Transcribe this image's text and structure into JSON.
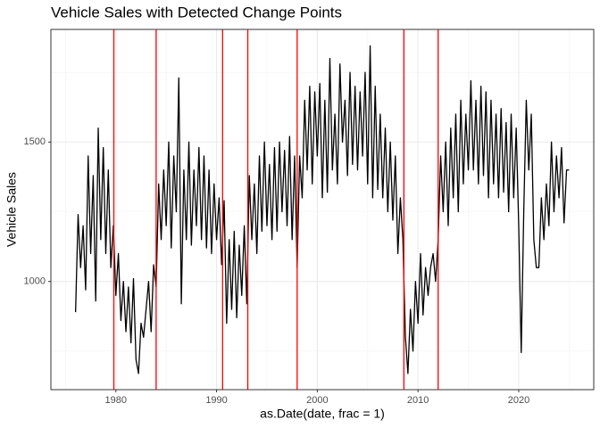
{
  "chart_data": {
    "type": "line",
    "title": "Vehicle Sales with Detected Change Points",
    "x_label": "as.Date(date, frac = 1)",
    "y_label": "Vehicle Sales",
    "color": "#000000",
    "change_points": [
      1979.8,
      1984.0,
      1990.6,
      1993.1,
      1998.0,
      2008.6,
      2012.0
    ],
    "change_color": "#ff0000",
    "xlim": [
      1973.55,
      2027.45
    ],
    "ylim": [
      612,
      1904
    ],
    "xticks": [
      1980,
      1990,
      2000,
      2010,
      2020
    ],
    "yticks": [
      1000,
      1500
    ],
    "x_minor_grid": [
      1975,
      1985,
      1995,
      2005,
      2015,
      2025
    ],
    "y_minor_grid": [
      750,
      1250,
      1750
    ],
    "grid": true,
    "x": [
      1976,
      1976.25,
      1976.5,
      1976.75,
      1977,
      1977.25,
      1977.5,
      1977.75,
      1978,
      1978.25,
      1978.5,
      1978.75,
      1979,
      1979.25,
      1979.5,
      1979.75,
      1980,
      1980.25,
      1980.5,
      1980.75,
      1981,
      1981.25,
      1981.5,
      1981.75,
      1982,
      1982.25,
      1982.5,
      1982.75,
      1983,
      1983.25,
      1983.5,
      1983.75,
      1984,
      1984.25,
      1984.5,
      1984.75,
      1985,
      1985.25,
      1985.5,
      1985.75,
      1986,
      1986.25,
      1986.5,
      1986.75,
      1987,
      1987.25,
      1987.5,
      1987.75,
      1988,
      1988.25,
      1988.5,
      1988.75,
      1989,
      1989.25,
      1989.5,
      1989.75,
      1990,
      1990.25,
      1990.5,
      1990.75,
      1991,
      1991.25,
      1991.5,
      1991.75,
      1992,
      1992.25,
      1992.5,
      1992.75,
      1993,
      1993.25,
      1993.5,
      1993.75,
      1994,
      1994.25,
      1994.5,
      1994.75,
      1995,
      1995.25,
      1995.5,
      1995.75,
      1996,
      1996.25,
      1996.5,
      1996.75,
      1997,
      1997.25,
      1997.5,
      1997.75,
      1998,
      1998.25,
      1998.5,
      1998.75,
      1999,
      1999.25,
      1999.5,
      1999.75,
      2000,
      2000.25,
      2000.5,
      2000.75,
      2001,
      2001.25,
      2001.5,
      2001.75,
      2002,
      2002.25,
      2002.5,
      2002.75,
      2003,
      2003.25,
      2003.5,
      2003.75,
      2004,
      2004.25,
      2004.5,
      2004.75,
      2005,
      2005.25,
      2005.5,
      2005.75,
      2006,
      2006.25,
      2006.5,
      2006.75,
      2007,
      2007.25,
      2007.5,
      2007.75,
      2008,
      2008.25,
      2008.5,
      2008.75,
      2009,
      2009.25,
      2009.5,
      2009.75,
      2010,
      2010.25,
      2010.5,
      2010.75,
      2011,
      2011.25,
      2011.5,
      2011.75,
      2012,
      2012.25,
      2012.5,
      2012.75,
      2013,
      2013.25,
      2013.5,
      2013.75,
      2014,
      2014.25,
      2014.5,
      2014.75,
      2015,
      2015.25,
      2015.5,
      2015.75,
      2016,
      2016.25,
      2016.5,
      2016.75,
      2017,
      2017.25,
      2017.5,
      2017.75,
      2018,
      2018.25,
      2018.5,
      2018.75,
      2019,
      2019.25,
      2019.5,
      2019.75,
      2020,
      2020.25,
      2020.5,
      2020.75,
      2021,
      2021.25,
      2021.5,
      2021.75,
      2022,
      2022.25,
      2022.5,
      2022.75,
      2023,
      2023.25,
      2023.5,
      2023.75,
      2024,
      2024.25,
      2024.5,
      2024.75,
      2025
    ],
    "values": [
      890,
      1240,
      1050,
      1200,
      970,
      1450,
      1100,
      1380,
      930,
      1550,
      1150,
      1480,
      1100,
      1400,
      1050,
      1200,
      950,
      1100,
      860,
      1000,
      820,
      980,
      780,
      1010,
      720,
      670,
      850,
      800,
      900,
      1000,
      820,
      1060,
      980,
      1350,
      1150,
      1400,
      1200,
      1500,
      1120,
      1450,
      1250,
      1730,
      920,
      1400,
      1150,
      1500,
      1130,
      1400,
      1200,
      1480,
      1150,
      1450,
      1120,
      1400,
      1100,
      1350,
      1150,
      1300,
      1060,
      1290,
      850,
      1150,
      900,
      1180,
      870,
      1130,
      950,
      1200,
      920,
      1380,
      1150,
      1350,
      1100,
      1450,
      1180,
      1500,
      1200,
      1420,
      1150,
      1480,
      1180,
      1500,
      1250,
      1470,
      1200,
      1520,
      1150,
      1450,
      1050,
      1450,
      1300,
      1650,
      1400,
      1700,
      1350,
      1680,
      1450,
      1710,
      1300,
      1650,
      1320,
      1800,
      1400,
      1600,
      1350,
      1780,
      1500,
      1650,
      1380,
      1750,
      1420,
      1700,
      1400,
      1680,
      1450,
      1750,
      1350,
      1845,
      1300,
      1700,
      1330,
      1600,
      1300,
      1550,
      1250,
      1500,
      1220,
      1450,
      1100,
      1300,
      1150,
      800,
      670,
      900,
      750,
      1000,
      850,
      1100,
      880,
      1050,
      950,
      1050,
      1100,
      1000,
      1150,
      1450,
      1250,
      1500,
      1200,
      1550,
      1300,
      1600,
      1250,
      1650,
      1350,
      1600,
      1400,
      1720,
      1400,
      1650,
      1350,
      1700,
      1380,
      1680,
      1300,
      1650,
      1350,
      1600,
      1300,
      1620,
      1320,
      1570,
      1250,
      1600,
      1300,
      1550,
      1200,
      745,
      1250,
      1650,
      1400,
      1600,
      1150,
      1050,
      1050,
      1300,
      1150,
      1350,
      1200,
      1500,
      1250,
      1450,
      1300,
      1480,
      1210,
      1400,
      1400
    ]
  }
}
